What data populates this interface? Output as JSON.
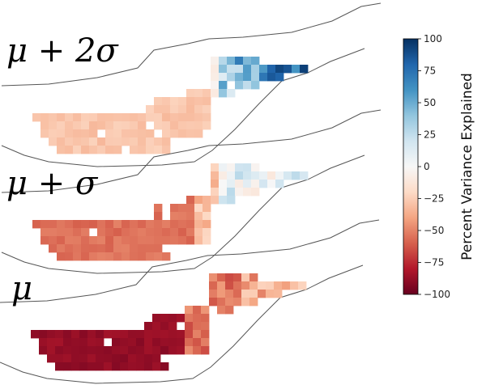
{
  "chart_data": {
    "type": "heatmap",
    "panels": [
      {
        "label": "μ + 2σ",
        "profile": "upper"
      },
      {
        "label": "μ + σ",
        "profile": "middle"
      },
      {
        "label": "μ",
        "profile": "lower"
      }
    ],
    "colorbar": {
      "label": "Percent Variance Explained",
      "min": -100,
      "max": 100,
      "ticks": [
        100,
        75,
        50,
        25,
        0,
        -25,
        -50,
        -75,
        -100
      ],
      "colormap": "RdBu",
      "colors": [
        "#67001f",
        "#b2182b",
        "#d6604d",
        "#f4a582",
        "#fddbc7",
        "#f7f7f7",
        "#d1e5f0",
        "#92c5de",
        "#4393c3",
        "#2166ac",
        "#053061"
      ]
    }
  }
}
